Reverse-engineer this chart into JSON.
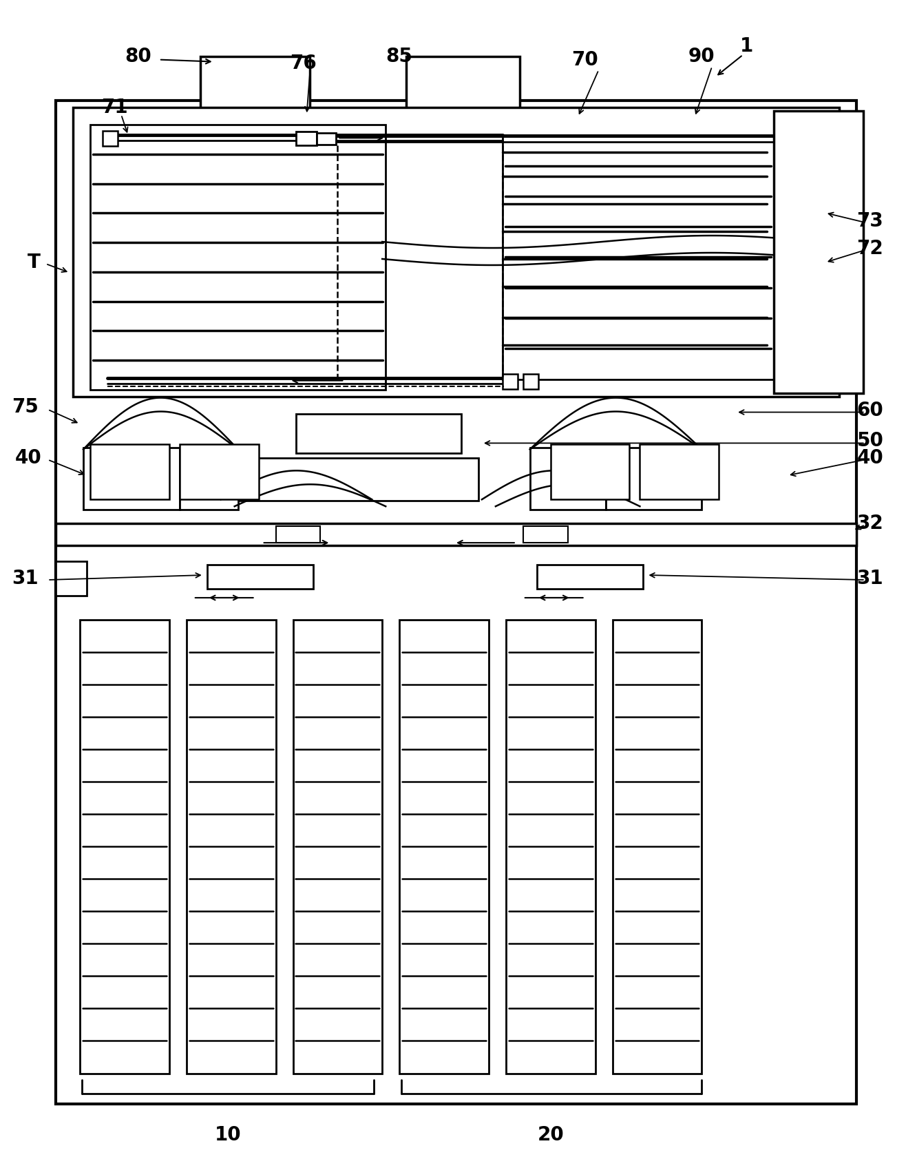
{
  "bg_color": "#ffffff",
  "line_color": "#000000",
  "fig_width": 13.32,
  "fig_height": 16.96
}
